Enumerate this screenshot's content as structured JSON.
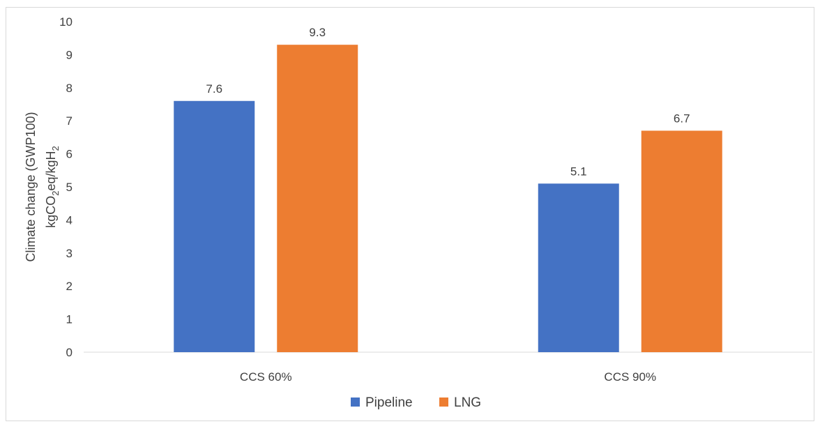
{
  "chart_data": {
    "type": "bar",
    "categories": [
      "CCS 60%",
      "CCS 90%"
    ],
    "series": [
      {
        "name": "Pipeline",
        "values": [
          7.6,
          5.1
        ],
        "labels": [
          "7.6",
          "5.1"
        ],
        "color": "#4472C4"
      },
      {
        "name": "LNG",
        "values": [
          9.3,
          6.7
        ],
        "labels": [
          "9.3",
          "6.7"
        ],
        "color": "#ED7D31"
      }
    ],
    "ylim": [
      0,
      10
    ],
    "yticks": [
      0,
      1,
      2,
      3,
      4,
      5,
      6,
      7,
      8,
      9,
      10
    ],
    "ylabel_line1": "Climate change (GWP100)",
    "ylabel_line2": {
      "kg": "kgCO",
      "sub1": "2",
      "mid": "eq/kgH",
      "sub2": "2"
    },
    "xlabel": "",
    "grid": false,
    "legend_position": "bottom"
  }
}
